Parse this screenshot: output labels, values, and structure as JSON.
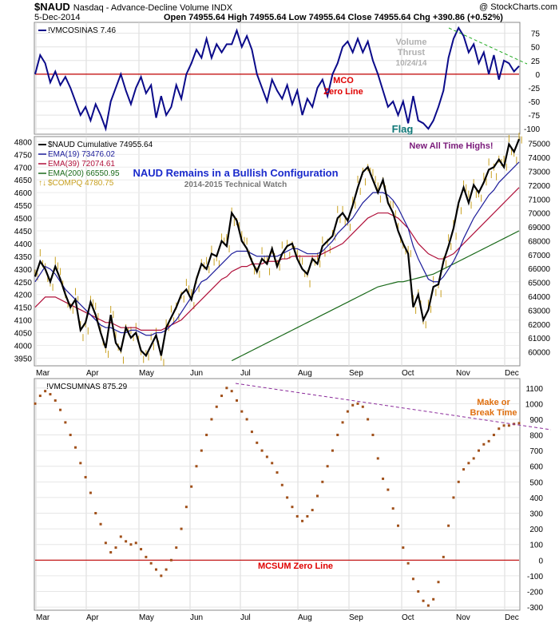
{
  "header": {
    "symbol": "$NAUD",
    "name": "Nasdaq - Advance-Decline Volume INDX",
    "date": "5-Dec-2014",
    "ohlc": "Open 74955.64  High 74955.64  Low 74955.64  Close 74955.64  Chg +390.86 (+0.52%)",
    "watermark": "@ StockCharts.com"
  },
  "months": [
    "Mar",
    "Apr",
    "May",
    "Jun",
    "Jul",
    "Aug",
    "Sep",
    "Oct",
    "Nov",
    "Dec"
  ],
  "chart_data": [
    {
      "id": "mco",
      "type": "line",
      "title": "!VMCOSINAS 7.46",
      "ylim": [
        -110,
        95
      ],
      "yticks": [
        75,
        50,
        25,
        0,
        -25,
        -50,
        -75,
        -100
      ],
      "values": [
        0,
        35,
        20,
        -15,
        5,
        -20,
        -5,
        -25,
        -50,
        -75,
        -60,
        -85,
        -55,
        -75,
        -100,
        -50,
        -25,
        0,
        -30,
        -55,
        -25,
        -5,
        -35,
        -20,
        -80,
        -40,
        -75,
        -60,
        -20,
        -45,
        0,
        20,
        45,
        30,
        65,
        30,
        55,
        40,
        55,
        55,
        80,
        50,
        70,
        45,
        0,
        -25,
        -50,
        -10,
        -30,
        -45,
        -20,
        -55,
        -30,
        -75,
        -45,
        -60,
        -25,
        -10,
        -40,
        0,
        20,
        50,
        60,
        40,
        65,
        40,
        60,
        25,
        0,
        -30,
        -60,
        -50,
        -75,
        -50,
        -90,
        -40,
        -85,
        -90,
        -100,
        -85,
        -60,
        -30,
        30,
        65,
        85,
        70,
        40,
        55,
        20,
        40,
        0,
        35,
        -10,
        25,
        20,
        5,
        15
      ],
      "series_color": "#0b0b8a",
      "zero_line_color": "#c00000",
      "annotations": [
        {
          "text": "MCO",
          "color": "#e00000"
        },
        {
          "text": "Zero Line",
          "color": "#e00000"
        },
        {
          "text": "Volume",
          "color": "#b0b0b0"
        },
        {
          "text": "Thrust",
          "color": "#b0b0b0"
        },
        {
          "text": "10/24/14",
          "color": "#b0b0b0"
        },
        {
          "text": "Flag",
          "color": "#107878"
        }
      ],
      "trendline_color": "#22aa22"
    },
    {
      "id": "naud",
      "type": "line",
      "title": "$NAUD Cumulative 74955.64",
      "subtitle": "NAUD Remains in a Bullish Configuration",
      "caption": "2014-2015 Technical Watch",
      "note": "New All Time Highs!",
      "y_left_lim": [
        3920,
        4820
      ],
      "y_left_ticks": [
        4800,
        4750,
        4700,
        4650,
        4600,
        4550,
        4500,
        4450,
        4400,
        4350,
        4300,
        4250,
        4200,
        4150,
        4100,
        4050,
        4000,
        3950
      ],
      "y_right_lim": [
        59000,
        75500
      ],
      "y_right_ticks": [
        75000,
        74000,
        73000,
        72000,
        71000,
        70000,
        69000,
        68000,
        67000,
        66000,
        65000,
        64000,
        63000,
        62000,
        61000,
        60000
      ],
      "series": [
        {
          "name": "$NAUD Cumulative 74955.64",
          "color": "#000000",
          "values": [
            4270,
            4330,
            4300,
            4250,
            4310,
            4260,
            4200,
            4150,
            4180,
            4060,
            4090,
            4170,
            4120,
            4050,
            3990,
            4120,
            4010,
            3980,
            4070,
            4030,
            4050,
            3980,
            3960,
            4000,
            4040,
            3960,
            4070,
            4110,
            4150,
            4200,
            4220,
            4180,
            4260,
            4320,
            4300,
            4360,
            4350,
            4410,
            4390,
            4520,
            4490,
            4410,
            4380,
            4330,
            4290,
            4340,
            4320,
            4380,
            4310,
            4360,
            4390,
            4400,
            4340,
            4300,
            4280,
            4340,
            4320,
            4390,
            4410,
            4430,
            4500,
            4520,
            4490,
            4550,
            4620,
            4680,
            4700,
            4650,
            4600,
            4650,
            4560,
            4520,
            4450,
            4400,
            4360,
            4150,
            4200,
            4100,
            4140,
            4230,
            4240,
            4330,
            4390,
            4460,
            4560,
            4620,
            4560,
            4630,
            4600,
            4640,
            4690,
            4700,
            4730,
            4700,
            4790,
            4760,
            4810
          ]
        },
        {
          "name": "EMA(19) 73476.02",
          "color": "#1c1c9a",
          "values": [
            4250,
            4280,
            4310,
            4300,
            4280,
            4250,
            4220,
            4200,
            4180,
            4160,
            4140,
            4120,
            4100,
            4080,
            4070,
            4070,
            4060,
            4050,
            4050,
            4060,
            4060,
            4050,
            4040,
            4040,
            4050,
            4050,
            4060,
            4080,
            4100,
            4130,
            4160,
            4190,
            4220,
            4250,
            4260,
            4280,
            4300,
            4320,
            4340,
            4360,
            4370,
            4370,
            4370,
            4360,
            4350,
            4350,
            4350,
            4350,
            4350,
            4360,
            4370,
            4380,
            4380,
            4370,
            4360,
            4360,
            4360,
            4370,
            4390,
            4410,
            4440,
            4460,
            4480,
            4500,
            4530,
            4560,
            4580,
            4600,
            4600,
            4600,
            4590,
            4570,
            4540,
            4500,
            4460,
            4390,
            4340,
            4300,
            4260,
            4250,
            4250,
            4270,
            4300,
            4330,
            4370,
            4420,
            4460,
            4500,
            4530,
            4560,
            4590,
            4610,
            4640,
            4660,
            4680,
            4700,
            4720
          ]
        },
        {
          "name": "EMA(39) 72074.61",
          "color": "#b0103a",
          "values": [
            4150,
            4170,
            4190,
            4190,
            4190,
            4180,
            4170,
            4160,
            4150,
            4140,
            4130,
            4120,
            4110,
            4100,
            4090,
            4090,
            4080,
            4070,
            4070,
            4070,
            4070,
            4060,
            4060,
            4060,
            4060,
            4060,
            4070,
            4080,
            4090,
            4100,
            4120,
            4140,
            4160,
            4180,
            4200,
            4220,
            4240,
            4260,
            4270,
            4290,
            4300,
            4310,
            4310,
            4320,
            4320,
            4320,
            4330,
            4330,
            4330,
            4340,
            4340,
            4350,
            4350,
            4350,
            4350,
            4350,
            4350,
            4360,
            4370,
            4380,
            4390,
            4400,
            4420,
            4440,
            4460,
            4480,
            4500,
            4510,
            4520,
            4520,
            4520,
            4510,
            4500,
            4480,
            4460,
            4430,
            4400,
            4380,
            4360,
            4350,
            4340,
            4340,
            4350,
            4360,
            4380,
            4400,
            4420,
            4440,
            4460,
            4480,
            4500,
            4520,
            4540,
            4560,
            4580,
            4600,
            4620
          ]
        },
        {
          "name": "EMA(200) 66550.95",
          "color": "#1a6a1a",
          "values": [
            null,
            null,
            null,
            null,
            null,
            null,
            null,
            null,
            null,
            null,
            null,
            null,
            null,
            null,
            null,
            null,
            null,
            null,
            null,
            null,
            null,
            null,
            null,
            null,
            null,
            null,
            null,
            null,
            null,
            null,
            null,
            null,
            null,
            null,
            null,
            null,
            null,
            null,
            null,
            3940,
            3950,
            3960,
            3970,
            3980,
            3990,
            4000,
            4010,
            4020,
            4030,
            4040,
            4050,
            4060,
            4070,
            4080,
            4090,
            4100,
            4110,
            4120,
            4130,
            4140,
            4150,
            4160,
            4170,
            4180,
            4190,
            4200,
            4210,
            4220,
            4230,
            4235,
            4240,
            4245,
            4250,
            4250,
            4255,
            4260,
            4265,
            4270,
            4275,
            4280,
            4290,
            4300,
            4310,
            4320,
            4330,
            4340,
            4350,
            4360,
            4370,
            4380,
            4390,
            4400,
            4410,
            4420,
            4430,
            4440,
            4450
          ]
        },
        {
          "name": "$COMPQ 4780.75",
          "color": "#c8a020",
          "style": "bars"
        }
      ]
    },
    {
      "id": "mcsum",
      "type": "scatter",
      "title": "!VMCSUMNAS 875.29",
      "ylim": [
        -320,
        1160
      ],
      "yticks": [
        1100,
        1000,
        900,
        800,
        700,
        600,
        500,
        400,
        300,
        200,
        100,
        0,
        -100,
        -200,
        -300
      ],
      "values": [
        1000,
        1050,
        1080,
        1060,
        1020,
        960,
        880,
        800,
        720,
        620,
        530,
        430,
        300,
        230,
        110,
        50,
        80,
        150,
        120,
        100,
        110,
        70,
        20,
        -20,
        -60,
        -100,
        -60,
        0,
        80,
        200,
        340,
        470,
        600,
        700,
        800,
        900,
        980,
        1050,
        1100,
        1080,
        1020,
        950,
        900,
        820,
        750,
        700,
        660,
        620,
        560,
        480,
        400,
        340,
        280,
        250,
        280,
        320,
        410,
        500,
        600,
        700,
        800,
        880,
        950,
        990,
        1000,
        980,
        900,
        800,
        650,
        520,
        450,
        330,
        220,
        80,
        -20,
        -120,
        -200,
        -260,
        -290,
        -250,
        -140,
        20,
        220,
        400,
        500,
        580,
        620,
        650,
        700,
        740,
        760,
        800,
        840,
        860,
        860,
        870,
        875
      ],
      "annotations": [
        {
          "text": "MCSUM Zero Line",
          "color": "#e00000"
        },
        {
          "text": "Make or",
          "color": "#e07010"
        },
        {
          "text": "Break Time",
          "color": "#e07010"
        }
      ],
      "dot_color": "#a0501a",
      "trendline_color": "#8a2a9a"
    }
  ]
}
